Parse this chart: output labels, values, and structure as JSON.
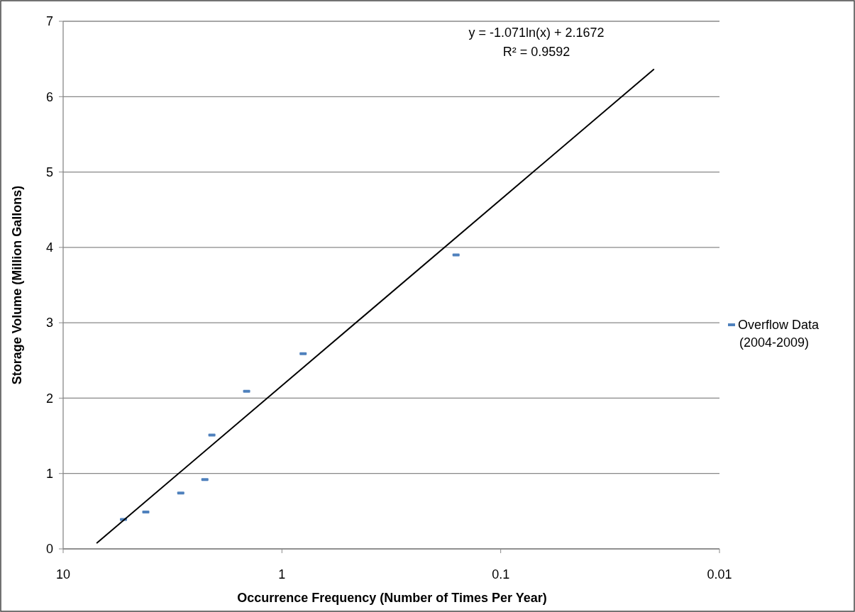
{
  "chart_data": {
    "type": "scatter",
    "xlabel": "Occurrence Frequency (Number of Times Per Year)",
    "ylabel": "Storage Volume (Million Gallons)",
    "annotations": [
      "y = -1.071ln(x) + 2.1672",
      "R² = 0.9592"
    ],
    "log": "x",
    "xlim": [
      10,
      0.01
    ],
    "xticks": [
      10,
      1,
      0.1,
      0.01
    ],
    "ylim": [
      0,
      7
    ],
    "yticks": [
      0,
      1,
      2,
      3,
      4,
      5,
      6,
      7
    ],
    "grid": "y",
    "legend": "right",
    "series": [
      {
        "name": "Overflow Data (2004-2009)",
        "color": "#4f81bd",
        "x": [
          5.3,
          4.19,
          2.9,
          2.25,
          2.09,
          1.45,
          0.8,
          0.16
        ],
        "values": [
          0.39,
          0.49,
          0.74,
          0.92,
          1.51,
          2.09,
          2.59,
          3.9
        ]
      },
      {
        "type": "line",
        "color": "#000000",
        "x": [
          7,
          0.02
        ],
        "values": [
          0.08,
          6.36
        ]
      }
    ]
  }
}
